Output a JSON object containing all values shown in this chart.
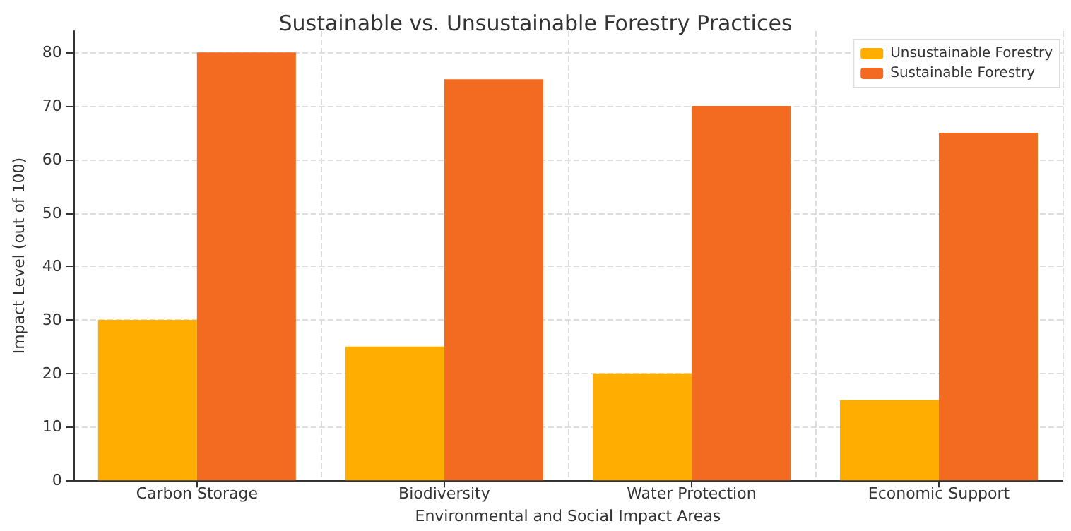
{
  "chart_data": {
    "type": "bar",
    "title": "Sustainable vs. Unsustainable Forestry Practices",
    "xlabel": "Environmental and Social Impact Areas",
    "ylabel": "Impact Level (out of 100)",
    "categories": [
      "Carbon Storage",
      "Biodiversity",
      "Water Protection",
      "Economic Support"
    ],
    "series": [
      {
        "name": "Unsustainable Forestry",
        "color": "#ffae00",
        "values": [
          30,
          25,
          20,
          15
        ]
      },
      {
        "name": "Sustainable Forestry",
        "color": "#f26b21",
        "values": [
          80,
          75,
          70,
          65
        ]
      }
    ],
    "ylim": [
      0,
      84
    ],
    "yticks": [
      0,
      10,
      20,
      30,
      40,
      50,
      60,
      70,
      80
    ],
    "grid": true,
    "legend": "top right"
  }
}
